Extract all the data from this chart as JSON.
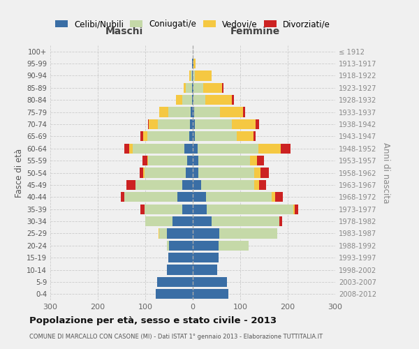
{
  "age_groups": [
    "0-4",
    "5-9",
    "10-14",
    "15-19",
    "20-24",
    "25-29",
    "30-34",
    "35-39",
    "40-44",
    "45-49",
    "50-54",
    "55-59",
    "60-64",
    "65-69",
    "70-74",
    "75-79",
    "80-84",
    "85-89",
    "90-94",
    "95-99",
    "100+"
  ],
  "birth_years": [
    "2008-2012",
    "2003-2007",
    "1998-2002",
    "1993-1997",
    "1988-1992",
    "1983-1987",
    "1978-1982",
    "1973-1977",
    "1968-1972",
    "1963-1967",
    "1958-1962",
    "1953-1957",
    "1948-1952",
    "1943-1947",
    "1938-1942",
    "1933-1937",
    "1928-1932",
    "1923-1927",
    "1918-1922",
    "1913-1917",
    "≤ 1912"
  ],
  "male_celibe": [
    78,
    75,
    55,
    52,
    50,
    55,
    42,
    22,
    32,
    22,
    14,
    12,
    18,
    7,
    6,
    4,
    2,
    2,
    1,
    1,
    0
  ],
  "male_coniugato": [
    0,
    0,
    0,
    0,
    5,
    15,
    58,
    80,
    112,
    98,
    88,
    82,
    108,
    88,
    68,
    48,
    20,
    12,
    4,
    1,
    0
  ],
  "male_vedovo": [
    0,
    0,
    0,
    0,
    0,
    2,
    0,
    0,
    0,
    1,
    2,
    2,
    8,
    10,
    18,
    18,
    14,
    5,
    2,
    0,
    0
  ],
  "male_divorziato": [
    0,
    0,
    0,
    0,
    0,
    0,
    0,
    8,
    8,
    18,
    8,
    10,
    10,
    5,
    2,
    0,
    0,
    0,
    0,
    0,
    0
  ],
  "female_nubile": [
    75,
    72,
    52,
    55,
    55,
    56,
    40,
    30,
    28,
    18,
    12,
    12,
    10,
    5,
    4,
    3,
    2,
    2,
    0,
    1,
    0
  ],
  "female_coniugata": [
    0,
    0,
    0,
    0,
    63,
    122,
    143,
    182,
    138,
    112,
    118,
    108,
    128,
    88,
    78,
    55,
    25,
    20,
    5,
    1,
    0
  ],
  "female_vedova": [
    0,
    0,
    0,
    0,
    0,
    0,
    0,
    2,
    8,
    10,
    12,
    15,
    48,
    35,
    50,
    48,
    55,
    40,
    35,
    4,
    0
  ],
  "female_divorziata": [
    0,
    0,
    0,
    0,
    0,
    0,
    5,
    8,
    15,
    15,
    18,
    15,
    20,
    5,
    8,
    5,
    5,
    2,
    0,
    0,
    0
  ],
  "color_celibe": "#3A6EA5",
  "color_coniugato": "#C5D9A8",
  "color_vedovo": "#F5C842",
  "color_divorziato": "#CC2222",
  "legend_labels": [
    "Celibi/Nubili",
    "Coniugati/e",
    "Vedovi/e",
    "Divorziati/e"
  ],
  "legend_colors": [
    "#3A6EA5",
    "#C5D9A8",
    "#F5C842",
    "#CC2222"
  ],
  "title": "Popolazione per età, sesso e stato civile - 2013",
  "subtitle": "COMUNE DI MARCALLO CON CASONE (MI) - Dati ISTAT 1° gennaio 2013 - Elaborazione TUTTITALIA.IT",
  "label_maschi": "Maschi",
  "label_femmine": "Femmine",
  "ylabel_left": "Fasce di età",
  "ylabel_right": "Anni di nascita",
  "xlim": 300,
  "bg_color": "#f0f0f0",
  "grid_color": "#cccccc"
}
